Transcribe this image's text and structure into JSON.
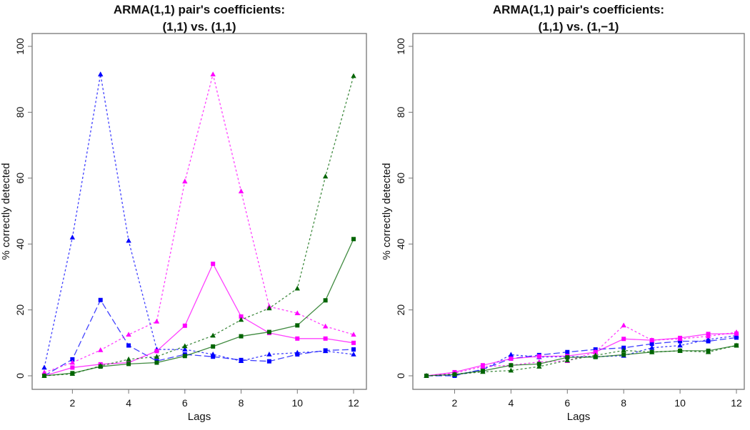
{
  "chart_data": [
    {
      "type": "line",
      "title": [
        "ARMA(1,1) pair's coefficients:",
        "(1,1) vs. (1,1)"
      ],
      "xlabel": "Lags",
      "ylabel": "% correctly detected",
      "xlim": [
        1,
        12
      ],
      "ylim": [
        0,
        100
      ],
      "xticks": [
        2,
        4,
        6,
        8,
        10,
        12
      ],
      "yticks": [
        0,
        20,
        40,
        60,
        80,
        100
      ],
      "grid": false,
      "x": [
        1,
        2,
        3,
        4,
        5,
        6,
        7,
        8,
        9,
        10,
        11,
        12
      ],
      "series": [
        {
          "name": "blue-triangle-dotted",
          "color": "#0000ff",
          "marker": "triangle",
          "dash": "dotted",
          "values": [
            2.5,
            42,
            91.5,
            41,
            8,
            8,
            6.5,
            4.5,
            6.5,
            7,
            7.5,
            6.5
          ]
        },
        {
          "name": "blue-square-dashed",
          "color": "#0000ff",
          "marker": "square",
          "dash": "longdash",
          "values": [
            0,
            5,
            23,
            9.2,
            4.5,
            6.5,
            5.8,
            4.8,
            4.4,
            6.5,
            7.7,
            8
          ]
        },
        {
          "name": "magenta-triangle-dotted",
          "color": "#ff00ff",
          "marker": "triangle",
          "dash": "dotted",
          "values": [
            1,
            4,
            7.8,
            12.5,
            16.5,
            59,
            91.5,
            56,
            21,
            19,
            15,
            12.5
          ]
        },
        {
          "name": "magenta-square-solid",
          "color": "#ff00ff",
          "marker": "square",
          "dash": "solid",
          "values": [
            0,
            2.5,
            3.5,
            4,
            7.5,
            15.2,
            34,
            18,
            13,
            11.3,
            11.3,
            10
          ]
        },
        {
          "name": "green-triangle-dotted",
          "color": "#006400",
          "marker": "triangle",
          "dash": "dotted",
          "values": [
            0,
            0.6,
            3,
            5,
            5.8,
            9,
            12.2,
            17,
            20.5,
            26.5,
            60.5,
            91
          ]
        },
        {
          "name": "green-square-solid",
          "color": "#006400",
          "marker": "square",
          "dash": "solid",
          "values": [
            0,
            0.8,
            2.8,
            3.6,
            4,
            6,
            8.9,
            12,
            13.3,
            15.3,
            22.9,
            41.5
          ]
        }
      ]
    },
    {
      "type": "line",
      "title": [
        "ARMA(1,1) pair's coefficients:",
        "(1,1) vs. (1,−1)"
      ],
      "xlabel": "Lags",
      "ylabel": "% correctly detected",
      "xlim": [
        1,
        12
      ],
      "ylim": [
        0,
        100
      ],
      "xticks": [
        2,
        4,
        6,
        8,
        10,
        12
      ],
      "yticks": [
        0,
        20,
        40,
        60,
        80,
        100
      ],
      "grid": false,
      "x": [
        1,
        2,
        3,
        4,
        5,
        6,
        7,
        8,
        9,
        10,
        11,
        12
      ],
      "series": [
        {
          "name": "blue-triangle-dotted",
          "color": "#0000ff",
          "marker": "triangle",
          "dash": "dotted",
          "values": [
            0,
            0.3,
            1.8,
            6.4,
            5.7,
            5.8,
            5.8,
            6.1,
            8.5,
            9.2,
            11,
            12.2
          ]
        },
        {
          "name": "blue-square-dashed",
          "color": "#0000ff",
          "marker": "square",
          "dash": "longdash",
          "values": [
            0,
            0,
            2,
            5.2,
            6.3,
            7.2,
            8,
            8.5,
            9.7,
            10.5,
            10.5,
            11.6
          ]
        },
        {
          "name": "magenta-triangle-dotted",
          "color": "#ff00ff",
          "marker": "triangle",
          "dash": "dotted",
          "values": [
            0,
            0.8,
            2.8,
            3.2,
            4.2,
            4.5,
            7.2,
            15.3,
            10.8,
            11.2,
            12,
            13.2
          ]
        },
        {
          "name": "magenta-square-solid",
          "color": "#ff00ff",
          "marker": "square",
          "dash": "solid",
          "values": [
            0,
            1.1,
            3.2,
            5.2,
            5.9,
            6,
            7.2,
            11.2,
            10.8,
            11.5,
            12.7,
            12.8
          ]
        },
        {
          "name": "green-triangle-dotted",
          "color": "#006400",
          "marker": "triangle",
          "dash": "dotted",
          "values": [
            0,
            0.4,
            1.2,
            1.6,
            2.8,
            4.7,
            6.2,
            7.7,
            7.2,
            7.6,
            7.2,
            9.2
          ]
        },
        {
          "name": "green-square-solid",
          "color": "#006400",
          "marker": "square",
          "dash": "solid",
          "values": [
            0,
            0.4,
            1.5,
            3.2,
            3.6,
            5.6,
            5.7,
            6.4,
            7.2,
            7.6,
            7.6,
            9.2
          ]
        }
      ]
    }
  ]
}
